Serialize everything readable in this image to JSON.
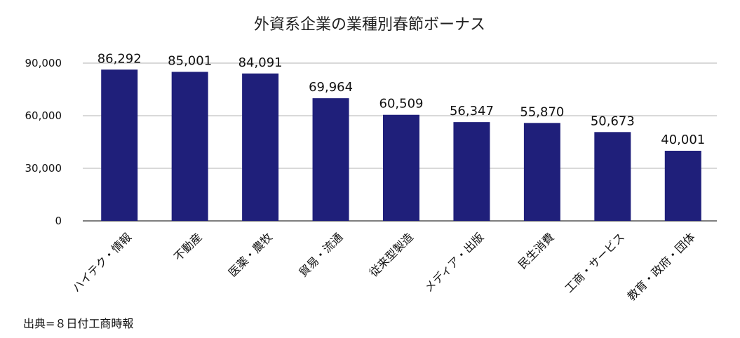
{
  "chart_data": {
    "type": "bar",
    "title": "外資系企業の業種別春節ボーナス",
    "categories": [
      "ハイテク・情報",
      "不動産",
      "医薬・農牧",
      "貿易・流通",
      "従来型製造",
      "メディア・出版",
      "民生消費",
      "工商・サービス",
      "教育・政府・団体"
    ],
    "values": [
      86292,
      85001,
      84091,
      69964,
      60509,
      56347,
      55870,
      50673,
      40001
    ],
    "data_labels": [
      "86,292",
      "85,001",
      "84,091",
      "69,964",
      "60,509",
      "56,347",
      "55,870",
      "50,673",
      "40,001"
    ],
    "yticks": [
      0,
      30000,
      60000,
      90000
    ],
    "ytick_labels": [
      "0",
      "30,000",
      "60,000",
      "90,000"
    ],
    "ylim": [
      0,
      90000
    ],
    "grid": true,
    "legend": "none",
    "bar_color": "#1f1f7a",
    "grid_color": "#b3b3b3",
    "source": "出典=８日付工商時報"
  }
}
